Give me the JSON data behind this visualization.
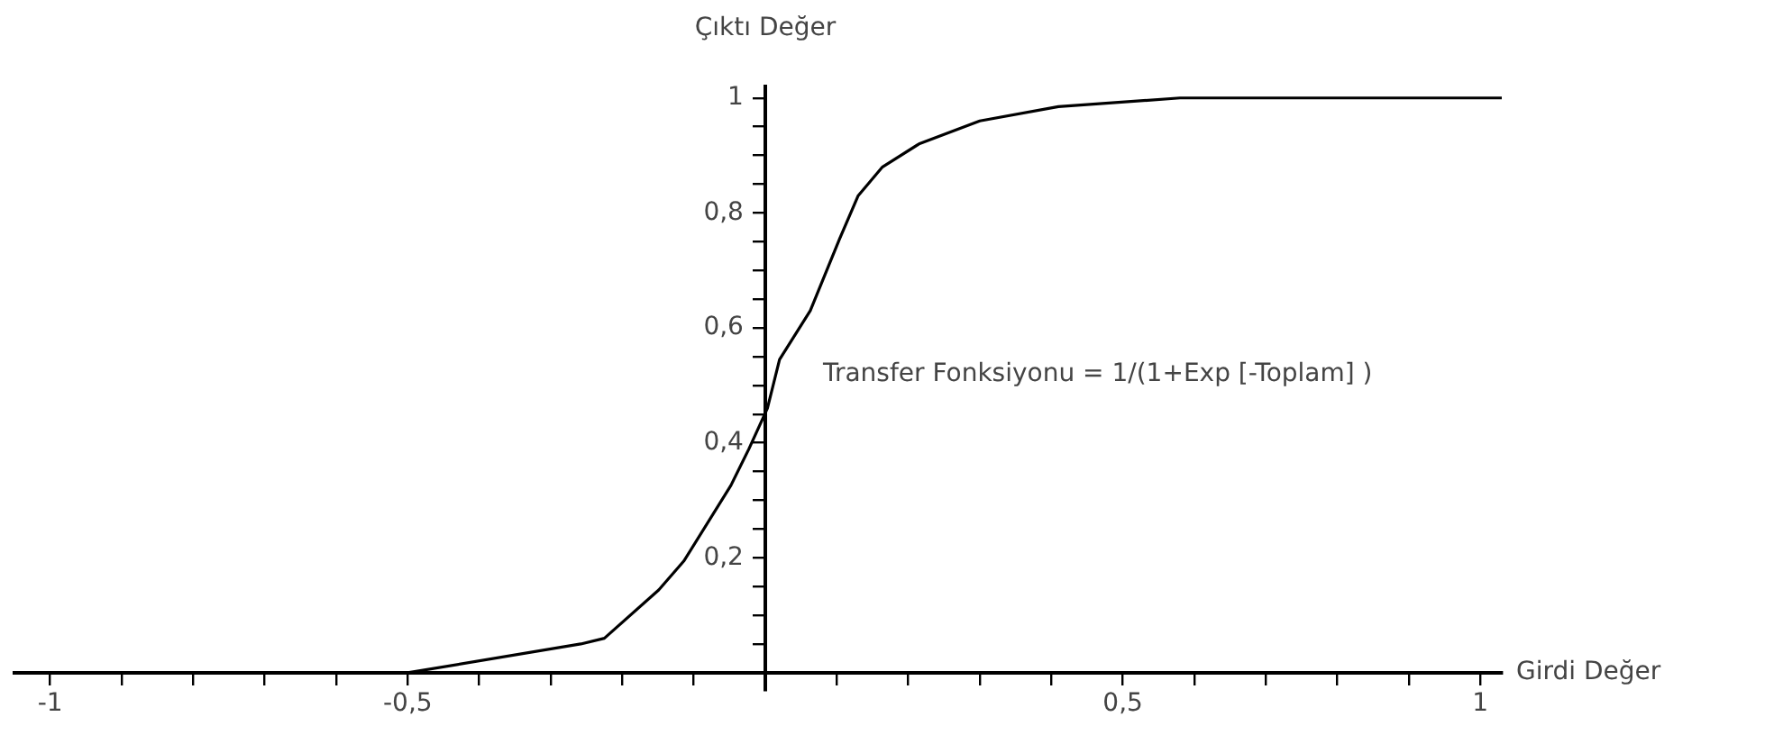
{
  "chart_data": {
    "type": "line",
    "xlabel": "Girdi Değer",
    "ylabel": "Çıktı Değer",
    "annotations": [
      "Transfer Fonksiyonu = 1/(1+Exp [-Toplam] )"
    ],
    "series": [
      {
        "color": "#000000",
        "x": [
          -0.56,
          -0.5,
          -0.258,
          -0.225,
          -0.149,
          -0.114,
          -0.048,
          -0.023,
          0.003,
          0.02,
          0.063,
          0.104,
          0.13,
          0.164,
          0.215,
          0.3,
          0.41,
          0.58,
          0.8,
          1.03
        ],
        "values": [
          0,
          0,
          0.05,
          0.06,
          0.144,
          0.194,
          0.326,
          0.389,
          0.46,
          0.545,
          0.63,
          0.755,
          0.83,
          0.88,
          0.92,
          0.96,
          0.985,
          1.0,
          1.0,
          1.0
        ]
      }
    ],
    "xlim": [
      -1.05,
      1.03
    ],
    "ylim": [
      -0.03,
      1.02
    ],
    "xticks": [
      -1,
      {
        "value": -0.9,
        "label": null
      },
      {
        "value": -0.8,
        "label": null
      },
      {
        "value": -0.7,
        "label": null
      },
      {
        "value": -0.6,
        "label": null
      },
      {
        "value": -0.5,
        "label": "-0,5"
      },
      {
        "value": -0.4,
        "label": null
      },
      {
        "value": -0.3,
        "label": null
      },
      {
        "value": -0.2,
        "label": null
      },
      {
        "value": -0.1,
        "label": null
      },
      {
        "value": 0,
        "label": null
      },
      {
        "value": 0.1,
        "label": null
      },
      {
        "value": 0.2,
        "label": null
      },
      {
        "value": 0.3,
        "label": null
      },
      {
        "value": 0.4,
        "label": null
      },
      {
        "value": 0.5,
        "label": "0,5"
      },
      {
        "value": 0.6,
        "label": null
      },
      {
        "value": 0.7,
        "label": null
      },
      {
        "value": 0.8,
        "label": null
      },
      {
        "value": 0.9,
        "label": null
      },
      1
    ],
    "yticks": [
      {
        "value": 0,
        "label": null
      },
      {
        "value": 0.05,
        "label": null
      },
      {
        "value": 0.1,
        "label": null
      },
      {
        "value": 0.15,
        "label": null
      },
      {
        "value": 0.2,
        "label": "0,2"
      },
      {
        "value": 0.25,
        "label": null
      },
      {
        "value": 0.3,
        "label": null
      },
      {
        "value": 0.35,
        "label": null
      },
      {
        "value": 0.4,
        "label": "0,4"
      },
      {
        "value": 0.45,
        "label": null
      },
      {
        "value": 0.5,
        "label": null
      },
      {
        "value": 0.55,
        "label": null
      },
      {
        "value": 0.6,
        "label": "0,6"
      },
      {
        "value": 0.65,
        "label": null
      },
      {
        "value": 0.7,
        "label": null
      },
      {
        "value": 0.75,
        "label": null
      },
      {
        "value": 0.8,
        "label": "0,8"
      },
      {
        "value": 0.85,
        "label": null
      },
      {
        "value": 0.9,
        "label": null
      },
      {
        "value": 0.95,
        "label": null
      },
      1
    ],
    "grid": false,
    "legend": false,
    "marker": "none",
    "line_style": "solid"
  }
}
